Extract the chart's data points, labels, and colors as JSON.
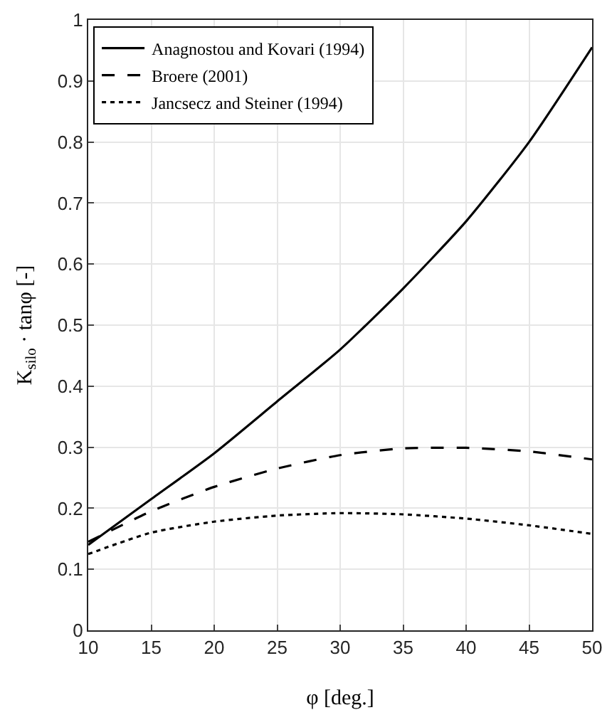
{
  "chart_data": {
    "type": "line",
    "xlabel": "φ [deg.]",
    "ylabel": "K$_{silo}$ · tanφ [-]",
    "x": [
      10,
      15,
      20,
      25,
      30,
      35,
      40,
      45,
      50
    ],
    "series": [
      {
        "name": "Anagnostou and Kovari (1994)",
        "color": "#000000",
        "line_style": "solid",
        "values": [
          0.14,
          0.215,
          0.29,
          0.375,
          0.46,
          0.56,
          0.67,
          0.8,
          0.955
        ]
      },
      {
        "name": "Broere (2001)",
        "color": "#000000",
        "line_style": "dashed",
        "values": [
          0.145,
          0.195,
          0.235,
          0.265,
          0.287,
          0.298,
          0.299,
          0.293,
          0.28
        ]
      },
      {
        "name": "Jancsecz and Steiner (1994)",
        "color": "#000000",
        "line_style": "dotted",
        "values": [
          0.125,
          0.16,
          0.178,
          0.188,
          0.192,
          0.19,
          0.183,
          0.172,
          0.158
        ]
      }
    ],
    "xlim": [
      10,
      50
    ],
    "xticks": [
      10,
      15,
      20,
      25,
      30,
      35,
      40,
      45,
      50
    ],
    "ylim": [
      0,
      1
    ],
    "yticks": [
      0,
      0.1,
      0.2,
      0.3,
      0.4,
      0.5,
      0.6,
      0.7,
      0.8,
      0.9,
      1
    ],
    "grid": true,
    "legend": "top left",
    "marker": "none"
  }
}
